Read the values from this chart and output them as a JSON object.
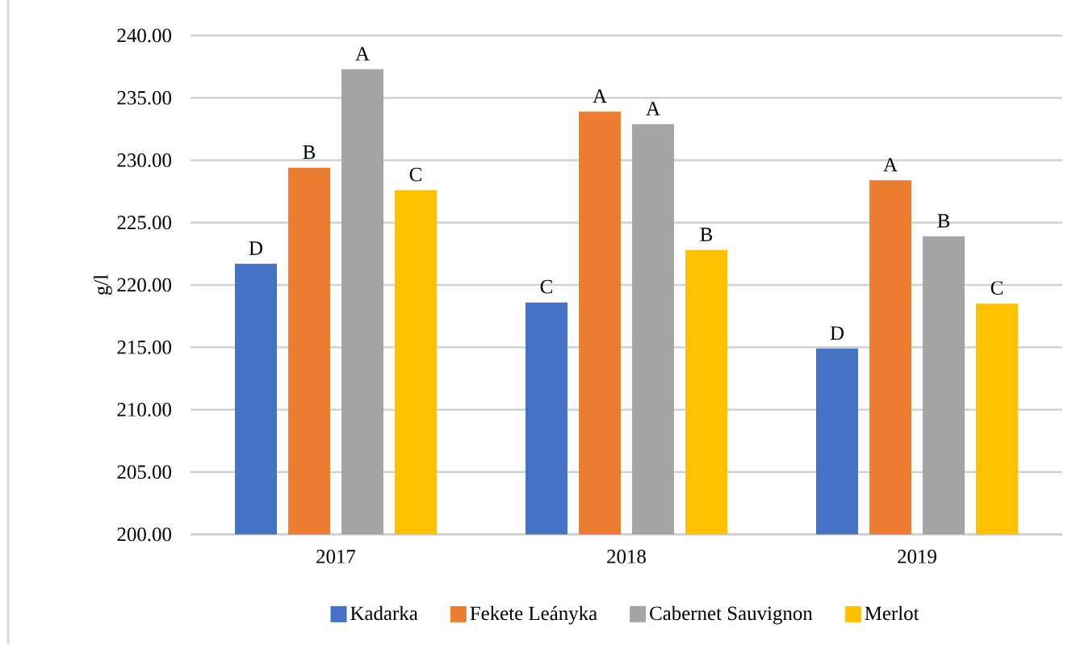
{
  "chart_data": {
    "type": "bar",
    "ylabel": "g/l",
    "categories": [
      "2017",
      "2018",
      "2019"
    ],
    "series": [
      {
        "name": "Kadarka",
        "color": "#4472c4",
        "values": [
          221.7,
          218.6,
          214.9
        ],
        "value_labels": [
          "D",
          "C",
          "D"
        ]
      },
      {
        "name": "Fekete Leányka",
        "color": "#ed7d31",
        "values": [
          229.4,
          233.9,
          228.4
        ],
        "value_labels": [
          "B",
          "A",
          "A"
        ]
      },
      {
        "name": "Cabernet Sauvignon",
        "color": "#a5a5a5",
        "values": [
          237.3,
          232.9,
          223.9
        ],
        "value_labels": [
          "A",
          "A",
          "B"
        ]
      },
      {
        "name": "Merlot",
        "color": "#ffc000",
        "values": [
          227.6,
          222.8,
          218.5
        ],
        "value_labels": [
          "C",
          "B",
          "C"
        ]
      }
    ],
    "ylim": [
      200,
      240
    ],
    "yticks": [
      {
        "value": 200,
        "label": "200.00"
      },
      {
        "value": 205,
        "label": "205.00"
      },
      {
        "value": 210,
        "label": "210.00"
      },
      {
        "value": 215,
        "label": "215.00"
      },
      {
        "value": 220,
        "label": "220.00"
      },
      {
        "value": 225,
        "label": "225.00"
      },
      {
        "value": 230,
        "label": "230.00"
      },
      {
        "value": 235,
        "label": "235.00"
      },
      {
        "value": 240,
        "label": "240.00"
      }
    ],
    "grid": "y",
    "legend": "bottom"
  }
}
